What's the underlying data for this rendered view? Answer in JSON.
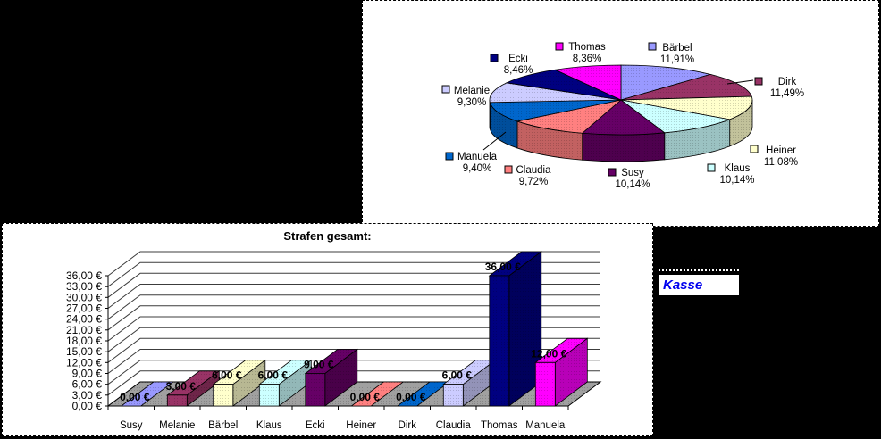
{
  "window": {
    "background": "#000000",
    "panel_bg": "#ffffff"
  },
  "kasse": {
    "text": "Kasse",
    "color": "#0000ee"
  },
  "palette_note": "excel-default-series-colors",
  "chart_data": [
    {
      "type": "pie",
      "title": "",
      "labels": [
        "Bärbel",
        "Dirk",
        "Heiner",
        "Klaus",
        "Susy",
        "Claudia",
        "Manuela",
        "Melanie",
        "Ecki",
        "Thomas"
      ],
      "values": [
        11.91,
        11.49,
        11.08,
        10.14,
        10.14,
        9.72,
        9.4,
        9.3,
        8.46,
        8.36
      ],
      "display_percent": [
        "11,91%",
        "11,49%",
        "11,08%",
        "10,14%",
        "10,14%",
        "9,72%",
        "9,40%",
        "9,30%",
        "8,46%",
        "8,36%"
      ],
      "colors": [
        "#9999FF",
        "#993366",
        "#FFFFCC",
        "#CCFFFF",
        "#660066",
        "#FF8080",
        "#0066CC",
        "#CCCCFF",
        "#000080",
        "#FF00FF"
      ],
      "style": "3d-pie",
      "start_angle_deg": 0,
      "legend_position": "labels-around-pie"
    },
    {
      "type": "bar",
      "title": "Strafen gesamt:",
      "categories": [
        "Susy",
        "Melanie",
        "Bärbel",
        "Klaus",
        "Ecki",
        "Heiner",
        "Dirk",
        "Claudia",
        "Thomas",
        "Manuela"
      ],
      "values": [
        0,
        3,
        6,
        6,
        9,
        0,
        0,
        6,
        36,
        12
      ],
      "data_labels": [
        "0,00 €",
        "3,00 €",
        "6,00 €",
        "6,00 €",
        "9,00 €",
        "0,00 €",
        "0,00 €",
        "6,00 €",
        "36,00 €",
        "12,00 €"
      ],
      "colors": [
        "#9999FF",
        "#993366",
        "#FFFFCC",
        "#CCFFFF",
        "#660066",
        "#FF8080",
        "#0066CC",
        "#CCCCFF",
        "#000080",
        "#FF00FF"
      ],
      "style": "3d-column",
      "ylim": [
        0,
        36
      ],
      "ystep": 3,
      "y_tick_labels": [
        "0,00 €",
        "3,00 €",
        "6,00 €",
        "9,00 €",
        "12,00 €",
        "15,00 €",
        "18,00 €",
        "21,00 €",
        "24,00 €",
        "27,00 €",
        "30,00 €",
        "33,00 €",
        "36,00 €"
      ],
      "grid": true,
      "floor_color": "#A0A0A0",
      "legend_position": "none"
    }
  ]
}
